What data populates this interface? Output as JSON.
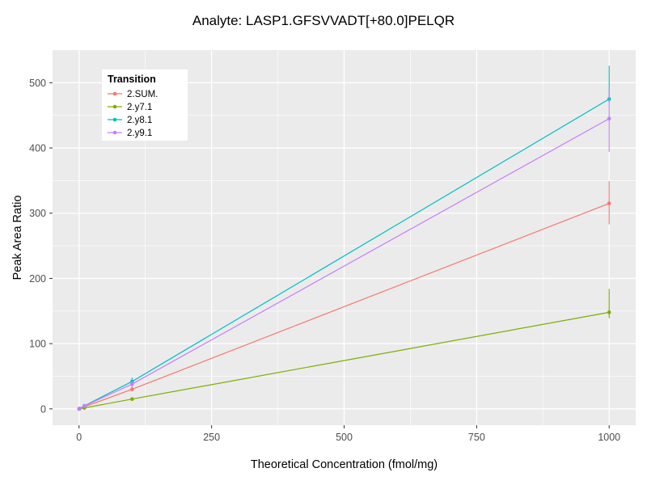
{
  "chart_data": {
    "type": "line",
    "title": "Analyte: LASP1.GFSVVADT[+80.0]PELQR",
    "xlabel": "Theoretical Concentration (fmol/mg)",
    "ylabel": "Peak Area Ratio",
    "xlim": [
      -50,
      1050
    ],
    "ylim": [
      -25,
      550
    ],
    "x_ticks": [
      0,
      250,
      500,
      750,
      1000
    ],
    "x_minor": [
      125,
      375,
      625,
      875
    ],
    "y_ticks": [
      0,
      100,
      200,
      300,
      400,
      500
    ],
    "y_minor": [
      50,
      150,
      250,
      350,
      450
    ],
    "legend_title": "Transition",
    "legend_position": "inside-top-left",
    "grid": true,
    "panel_bg": "#EBEBEB",
    "grid_color": "#FFFFFF",
    "tick_label_color": "#4D4D4D",
    "tick_mark_color": "#333333",
    "series": [
      {
        "name": "2.SUM.",
        "color": "#F8766D",
        "points": [
          {
            "x": 0,
            "y": 0,
            "lo": 0,
            "hi": 0
          },
          {
            "x": 1,
            "y": 0.3,
            "lo": 0.3,
            "hi": 0.3
          },
          {
            "x": 10,
            "y": 3.2,
            "lo": 3,
            "hi": 3.4
          },
          {
            "x": 100,
            "y": 30,
            "lo": 27,
            "hi": 33
          },
          {
            "x": 1000,
            "y": 315,
            "lo": 283,
            "hi": 349
          }
        ]
      },
      {
        "name": "2.y7.1",
        "color": "#7CAE00",
        "points": [
          {
            "x": 0,
            "y": 0,
            "lo": 0,
            "hi": 0
          },
          {
            "x": 1,
            "y": 0.15,
            "lo": 0.15,
            "hi": 0.15
          },
          {
            "x": 10,
            "y": 1.5,
            "lo": 1.4,
            "hi": 1.6
          },
          {
            "x": 100,
            "y": 15,
            "lo": 13,
            "hi": 17
          },
          {
            "x": 1000,
            "y": 148,
            "lo": 139,
            "hi": 184
          }
        ]
      },
      {
        "name": "2.y8.1",
        "color": "#00BFC4",
        "points": [
          {
            "x": 0,
            "y": 0,
            "lo": 0,
            "hi": 0
          },
          {
            "x": 1,
            "y": 0.5,
            "lo": 0.5,
            "hi": 0.5
          },
          {
            "x": 10,
            "y": 4.7,
            "lo": 4.4,
            "hi": 5
          },
          {
            "x": 100,
            "y": 42,
            "lo": 34,
            "hi": 48
          },
          {
            "x": 1000,
            "y": 475,
            "lo": 470,
            "hi": 526
          }
        ]
      },
      {
        "name": "2.y9.1",
        "color": "#C77CFF",
        "points": [
          {
            "x": 0,
            "y": 0,
            "lo": 0,
            "hi": 0
          },
          {
            "x": 1,
            "y": 0.4,
            "lo": 0.4,
            "hi": 0.4
          },
          {
            "x": 10,
            "y": 4.4,
            "lo": 4.1,
            "hi": 4.7
          },
          {
            "x": 100,
            "y": 38,
            "lo": 33,
            "hi": 43
          },
          {
            "x": 1000,
            "y": 445,
            "lo": 394,
            "hi": 491
          }
        ]
      }
    ]
  }
}
